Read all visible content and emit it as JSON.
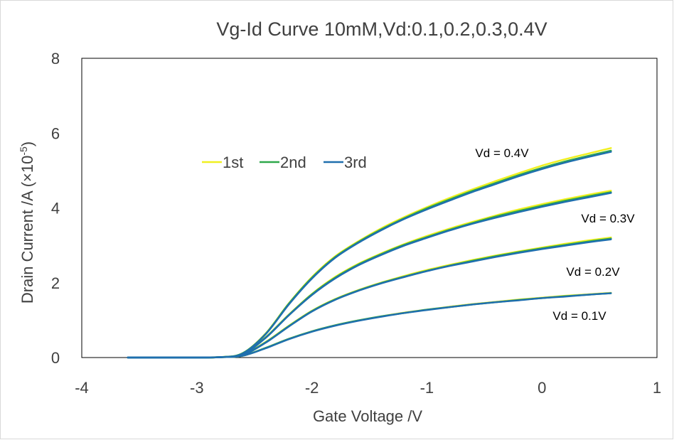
{
  "chart_data": {
    "type": "line",
    "title": "Vg-Id Curve 10mM,Vd:0.1,0.2,0.3,0.4V",
    "xlabel": "Gate Voltage /V",
    "ylabel_main": "Drain Current /A (×10",
    "ylabel_exp": "-5",
    "ylabel_close": ")",
    "xlim": [
      -4,
      1
    ],
    "ylim": [
      0,
      8
    ],
    "x_ticks": [
      -4,
      -3,
      -2,
      -1,
      0,
      1
    ],
    "y_ticks": [
      0,
      2,
      4,
      6,
      8
    ],
    "grid": false,
    "legend_position": "upper-left",
    "legend": [
      {
        "name": "1st",
        "color": "#f0f020"
      },
      {
        "name": "2nd",
        "color": "#2ea84a"
      },
      {
        "name": "3rd",
        "color": "#1f6fae"
      }
    ],
    "x": [
      -3.6,
      -3.2,
      -2.8,
      -2.6,
      -2.4,
      -2.2,
      -2.0,
      -1.8,
      -1.6,
      -1.4,
      -1.2,
      -1.0,
      -0.8,
      -0.6,
      -0.4,
      -0.2,
      0.0,
      0.2,
      0.4,
      0.6
    ],
    "groups": [
      {
        "label": "Vd = 0.4V",
        "series": [
          {
            "name": "1st",
            "values": [
              0,
              0,
              0.01,
              0.12,
              0.65,
              1.45,
              2.15,
              2.7,
              3.1,
              3.45,
              3.75,
              4.02,
              4.27,
              4.5,
              4.72,
              4.93,
              5.13,
              5.3,
              5.45,
              5.6
            ]
          },
          {
            "name": "2nd",
            "values": [
              0,
              0,
              0.01,
              0.12,
              0.64,
              1.44,
              2.13,
              2.68,
              3.08,
              3.42,
              3.72,
              3.99,
              4.23,
              4.46,
              4.67,
              4.88,
              5.07,
              5.24,
              5.39,
              5.53
            ]
          },
          {
            "name": "3rd",
            "values": [
              0,
              0,
              0.01,
              0.11,
              0.63,
              1.42,
              2.11,
              2.66,
              3.06,
              3.4,
              3.7,
              3.96,
              4.2,
              4.43,
              4.64,
              4.85,
              5.04,
              5.21,
              5.36,
              5.5
            ]
          }
        ]
      },
      {
        "label": "Vd = 0.3V",
        "series": [
          {
            "name": "1st",
            "values": [
              0,
              0,
              0.01,
              0.1,
              0.55,
              1.15,
              1.7,
              2.15,
              2.5,
              2.78,
              3.03,
              3.25,
              3.45,
              3.63,
              3.8,
              3.96,
              4.1,
              4.23,
              4.35,
              4.46
            ]
          },
          {
            "name": "2nd",
            "values": [
              0,
              0,
              0.01,
              0.1,
              0.54,
              1.14,
              1.69,
              2.13,
              2.48,
              2.76,
              3.01,
              3.22,
              3.42,
              3.6,
              3.77,
              3.92,
              4.06,
              4.19,
              4.31,
              4.42
            ]
          },
          {
            "name": "3rd",
            "values": [
              0,
              0,
              0.01,
              0.09,
              0.53,
              1.13,
              1.67,
              2.11,
              2.46,
              2.74,
              2.99,
              3.2,
              3.4,
              3.58,
              3.74,
              3.89,
              4.03,
              4.16,
              4.28,
              4.4
            ]
          }
        ]
      },
      {
        "label": "Vd = 0.2V",
        "series": [
          {
            "name": "1st",
            "values": [
              0,
              0,
              0.01,
              0.08,
              0.42,
              0.85,
              1.25,
              1.56,
              1.8,
              2.0,
              2.18,
              2.34,
              2.48,
              2.61,
              2.73,
              2.84,
              2.94,
              3.04,
              3.13,
              3.21
            ]
          },
          {
            "name": "2nd",
            "values": [
              0,
              0,
              0.01,
              0.08,
              0.41,
              0.84,
              1.24,
              1.55,
              1.79,
              1.99,
              2.16,
              2.32,
              2.46,
              2.59,
              2.71,
              2.82,
              2.92,
              3.01,
              3.1,
              3.18
            ]
          },
          {
            "name": "3rd",
            "values": [
              0,
              0,
              0.01,
              0.07,
              0.4,
              0.83,
              1.23,
              1.54,
              1.78,
              1.98,
              2.15,
              2.31,
              2.45,
              2.57,
              2.69,
              2.8,
              2.9,
              2.99,
              3.08,
              3.16
            ]
          }
        ]
      },
      {
        "label": "Vd = 0.1V",
        "series": [
          {
            "name": "1st",
            "values": [
              0,
              0,
              0.01,
              0.05,
              0.26,
              0.5,
              0.7,
              0.86,
              0.99,
              1.1,
              1.2,
              1.28,
              1.36,
              1.43,
              1.49,
              1.55,
              1.6,
              1.65,
              1.69,
              1.73
            ]
          },
          {
            "name": "2nd",
            "values": [
              0,
              0,
              0.01,
              0.05,
              0.26,
              0.5,
              0.7,
              0.86,
              0.99,
              1.1,
              1.19,
              1.28,
              1.35,
              1.42,
              1.48,
              1.54,
              1.59,
              1.64,
              1.68,
              1.72
            ]
          },
          {
            "name": "3rd",
            "values": [
              0,
              0,
              0.01,
              0.05,
              0.25,
              0.49,
              0.69,
              0.85,
              0.98,
              1.09,
              1.19,
              1.27,
              1.35,
              1.42,
              1.48,
              1.53,
              1.59,
              1.63,
              1.68,
              1.72
            ]
          }
        ]
      }
    ]
  }
}
